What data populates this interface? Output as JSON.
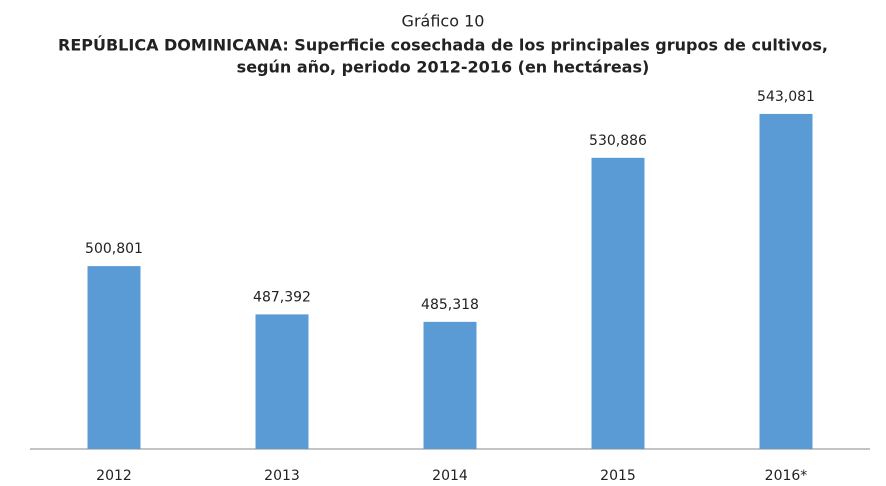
{
  "chart_data": {
    "type": "bar",
    "label": "Gráfico 10",
    "title": [
      "REPÚBLICA DOMINICANA: Superficie cosechada de los principales grupos de cultivos,",
      "según año, periodo 2012-2016 (en hectáreas)"
    ],
    "categories": [
      "2012",
      "2013",
      "2014",
      "2015",
      "2016*"
    ],
    "values": [
      500801,
      487392,
      485318,
      530886,
      543081
    ],
    "value_labels": [
      "500,801",
      "487,392",
      "485,318",
      "530,886",
      "543,081"
    ],
    "color": "#5b9bd5",
    "ylim": [
      450000,
      550000
    ]
  }
}
